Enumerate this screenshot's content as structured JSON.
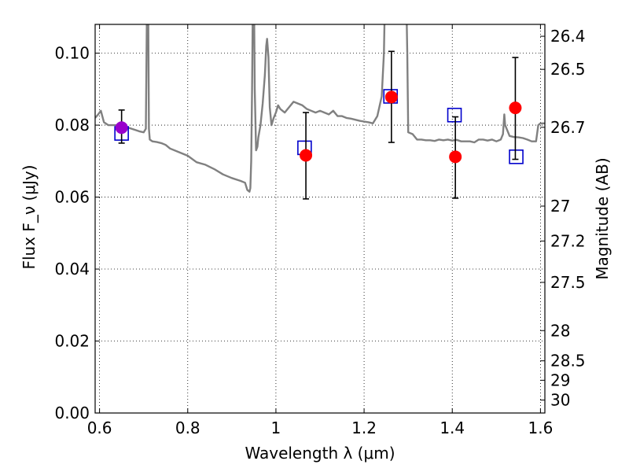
{
  "chart_data": {
    "type": "scatter",
    "xlabel": "Wavelength λ (μm)",
    "ylabel": "Flux F_ν (μJy)",
    "ylabel_right": "Magnitude (AB)",
    "xlim": [
      0.59,
      1.61
    ],
    "ylim": [
      0.0,
      0.108
    ],
    "grid": true,
    "x_ticks": [
      0.6,
      0.8,
      1.0,
      1.2,
      1.4,
      1.6
    ],
    "x_tick_labels": [
      "0.6",
      "0.8",
      "1",
      "1.2",
      "1.4",
      "1.6"
    ],
    "y_ticks": [
      0.0,
      0.02,
      0.04,
      0.06,
      0.08,
      0.1
    ],
    "y_tick_labels": [
      "0.00",
      "0.02",
      "0.04",
      "0.06",
      "0.08",
      "0.10"
    ],
    "right_ticks": [
      {
        "flux": 0.1047,
        "label": "26.4"
      },
      {
        "flux": 0.0955,
        "label": "26.5"
      },
      {
        "flux": 0.0794,
        "label": "26.7"
      },
      {
        "flux": 0.0575,
        "label": "27"
      },
      {
        "flux": 0.0478,
        "label": "27.2"
      },
      {
        "flux": 0.0363,
        "label": "27.5"
      },
      {
        "flux": 0.0229,
        "label": "28"
      },
      {
        "flux": 0.0145,
        "label": "28.5"
      },
      {
        "flux": 0.0091,
        "label": "29"
      },
      {
        "flux": 0.0036,
        "label": "30"
      }
    ],
    "series": [
      {
        "style": "line",
        "color": "#808080",
        "x": [
          0.59,
          0.597,
          0.603,
          0.61,
          0.62,
          0.64,
          0.66,
          0.68,
          0.69,
          0.7,
          0.705,
          0.708,
          0.71,
          0.712,
          0.714,
          0.72,
          0.73,
          0.74,
          0.75,
          0.76,
          0.78,
          0.8,
          0.82,
          0.84,
          0.86,
          0.88,
          0.9,
          0.92,
          0.93,
          0.935,
          0.94,
          0.942,
          0.944,
          0.946,
          0.948,
          0.95,
          0.952,
          0.955,
          0.958,
          0.96,
          0.965,
          0.97,
          0.975,
          0.978,
          0.98,
          0.983,
          0.986,
          0.99,
          0.995,
          1.0,
          1.005,
          1.01,
          1.015,
          1.02,
          1.03,
          1.04,
          1.05,
          1.06,
          1.07,
          1.08,
          1.09,
          1.1,
          1.11,
          1.12,
          1.13,
          1.14,
          1.15,
          1.16,
          1.17,
          1.18,
          1.19,
          1.2,
          1.21,
          1.22,
          1.23,
          1.24,
          1.245,
          1.248,
          1.25,
          1.26,
          1.27,
          1.28,
          1.29,
          1.295,
          1.298,
          1.3,
          1.31,
          1.32,
          1.33,
          1.34,
          1.35,
          1.36,
          1.37,
          1.38,
          1.39,
          1.4,
          1.41,
          1.42,
          1.43,
          1.44,
          1.45,
          1.46,
          1.47,
          1.48,
          1.49,
          1.5,
          1.51,
          1.515,
          1.518,
          1.52,
          1.53,
          1.54,
          1.55,
          1.56,
          1.57,
          1.58,
          1.59,
          1.595,
          1.6,
          1.61
        ],
        "y": [
          0.082,
          0.083,
          0.084,
          0.0808,
          0.08,
          0.08,
          0.0795,
          0.0787,
          0.0783,
          0.078,
          0.079,
          0.12,
          0.12,
          0.079,
          0.076,
          0.0755,
          0.0753,
          0.075,
          0.0745,
          0.0735,
          0.0725,
          0.0715,
          0.0697,
          0.069,
          0.0678,
          0.0663,
          0.0653,
          0.0645,
          0.064,
          0.062,
          0.0615,
          0.0625,
          0.07,
          0.09,
          0.12,
          0.12,
          0.09,
          0.073,
          0.074,
          0.0765,
          0.08,
          0.086,
          0.094,
          0.102,
          0.104,
          0.099,
          0.085,
          0.08,
          0.082,
          0.0835,
          0.0855,
          0.0845,
          0.084,
          0.0835,
          0.085,
          0.0865,
          0.086,
          0.0855,
          0.0845,
          0.084,
          0.0835,
          0.084,
          0.0835,
          0.083,
          0.084,
          0.0825,
          0.0825,
          0.082,
          0.0818,
          0.0815,
          0.0812,
          0.081,
          0.0808,
          0.0805,
          0.0825,
          0.088,
          0.1,
          0.12,
          0.12,
          0.12,
          0.12,
          0.12,
          0.12,
          0.12,
          0.1,
          0.078,
          0.0775,
          0.076,
          0.076,
          0.0758,
          0.0758,
          0.0756,
          0.076,
          0.0758,
          0.076,
          0.0757,
          0.0759,
          0.0755,
          0.0755,
          0.0755,
          0.0752,
          0.076,
          0.076,
          0.0757,
          0.076,
          0.0755,
          0.076,
          0.0775,
          0.083,
          0.08,
          0.077,
          0.0767,
          0.0766,
          0.0764,
          0.076,
          0.0755,
          0.0755,
          0.08,
          0.0805,
          0.0805
        ]
      },
      {
        "style": "open-square",
        "color": "#0000cc",
        "x": [
          0.65,
          1.065,
          1.26,
          1.405,
          1.545
        ],
        "y": [
          0.0777,
          0.0737,
          0.088,
          0.0828,
          0.0712
        ]
      },
      {
        "style": "errorbar",
        "color": "#000000",
        "x": [
          0.65,
          1.068,
          1.262,
          1.407,
          1.543
        ],
        "y": [
          0.0793,
          0.0716,
          0.0878,
          0.0712,
          0.0848
        ],
        "err_low": [
          0.075,
          0.0595,
          0.0752,
          0.0597,
          0.0705
        ],
        "err_high": [
          0.0842,
          0.0835,
          0.1005,
          0.0823,
          0.0988
        ]
      },
      {
        "style": "filled-circle",
        "color": "#ff0000",
        "x": [
          1.068,
          1.262,
          1.407,
          1.543
        ],
        "y": [
          0.0716,
          0.0878,
          0.0712,
          0.0848
        ]
      },
      {
        "style": "filled-circle",
        "color": "#9900cc",
        "x": [
          0.65
        ],
        "y": [
          0.0793
        ]
      }
    ]
  }
}
